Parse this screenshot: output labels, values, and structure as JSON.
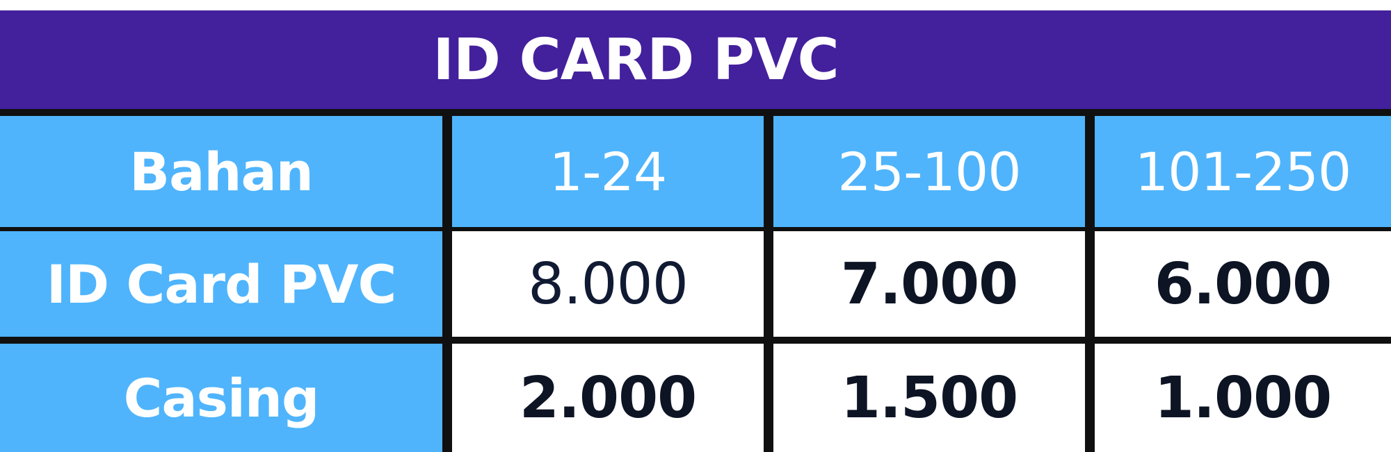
{
  "title": "ID CARD PVC",
  "colors": {
    "title_bg": "#43209c",
    "header_bg": "#4fb4fc",
    "row_label_bg": "#4fb4fc",
    "cell_bg": "#ffffff",
    "border": "#101010"
  },
  "table": {
    "headers": [
      "Bahan",
      "1-24",
      "25-100",
      "101-250"
    ],
    "rows": [
      {
        "label": "ID Card PVC",
        "values": [
          "8.000",
          "7.000",
          "6.000"
        ]
      },
      {
        "label": "Casing",
        "values": [
          "2.000",
          "1.500",
          "1.000"
        ]
      }
    ]
  }
}
